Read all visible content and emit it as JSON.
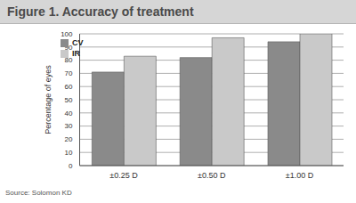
{
  "chart_data": {
    "type": "bar",
    "title": "Figure 1. Accuracy of treatment",
    "categories": [
      "±0.25 D",
      "±0.50 D",
      "±1.00 D"
    ],
    "series": [
      {
        "name": "CV",
        "color": "#8a8a8a",
        "values": [
          71,
          82,
          94
        ]
      },
      {
        "name": "IR",
        "color": "#c9c9c9",
        "values": [
          83,
          97,
          100
        ]
      }
    ],
    "y_label": "Percentage of eyes",
    "ylim": [
      0,
      100
    ],
    "yticks": [
      0,
      10,
      20,
      30,
      40,
      50,
      60,
      70,
      80,
      90,
      100
    ],
    "grid": true,
    "legend": "upper left",
    "source": "Source: Solomon KD"
  }
}
